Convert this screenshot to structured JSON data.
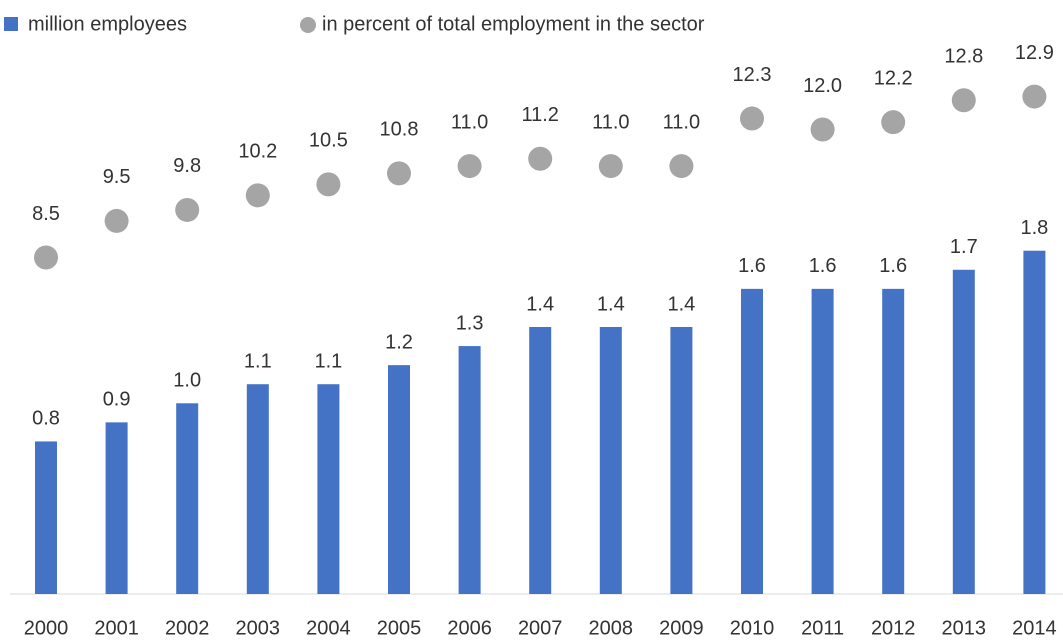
{
  "chart_data": {
    "type": "bar",
    "categories": [
      "2000",
      "2001",
      "2002",
      "2003",
      "2004",
      "2005",
      "2006",
      "2007",
      "2008",
      "2009",
      "2010",
      "2011",
      "2012",
      "2013",
      "2014"
    ],
    "series": [
      {
        "name": "million employees",
        "type": "bar",
        "color": "#4472c4",
        "values": [
          0.8,
          0.9,
          1.0,
          1.1,
          1.1,
          1.2,
          1.3,
          1.4,
          1.4,
          1.4,
          1.6,
          1.6,
          1.6,
          1.7,
          1.8
        ],
        "value_labels": [
          "0.8",
          "0.9",
          "1.0",
          "1.1",
          "1.1",
          "1.2",
          "1.3",
          "1.4",
          "1.4",
          "1.4",
          "1.6",
          "1.6",
          "1.6",
          "1.7",
          "1.8"
        ]
      },
      {
        "name": "in percent of total employment in the sector",
        "type": "scatter",
        "axis": "y2",
        "color": "#a5a5a5",
        "values": [
          8.5,
          9.5,
          9.8,
          10.2,
          10.5,
          10.8,
          11.0,
          11.2,
          11.0,
          11.0,
          12.3,
          12.0,
          12.2,
          12.8,
          12.9
        ],
        "value_labels": [
          "8.5",
          "9.5",
          "9.8",
          "10.2",
          "10.5",
          "10.8",
          "11.0",
          "11.2",
          "11.0",
          "11.0",
          "12.3",
          "12.0",
          "12.2",
          "12.8",
          "12.9"
        ]
      }
    ],
    "ylim": [
      0,
      2.8
    ],
    "y2lim": [
      -0.7,
      13.9
    ]
  }
}
